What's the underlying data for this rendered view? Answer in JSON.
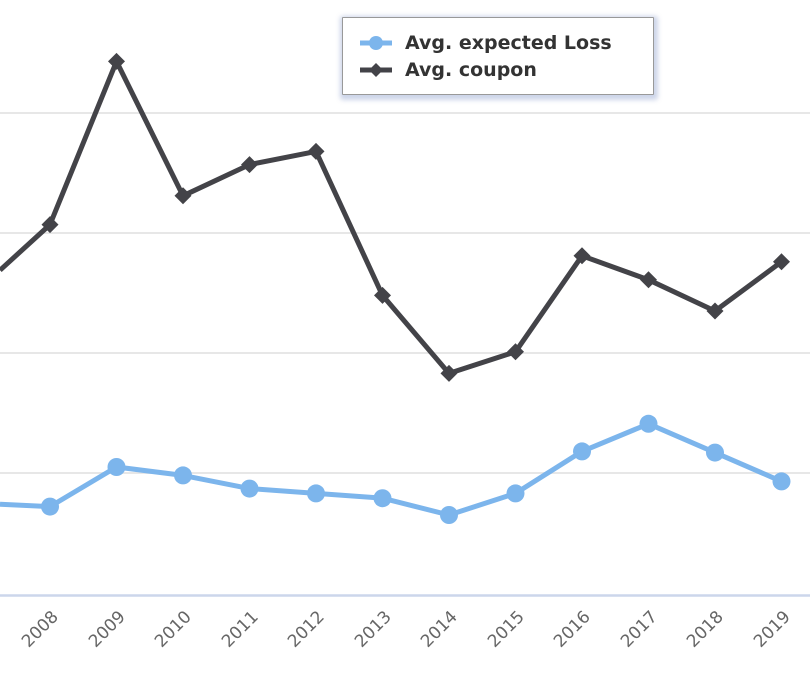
{
  "chart_data": {
    "type": "line",
    "title": "",
    "xlabel": "",
    "ylabel": "",
    "categories": [
      "2008",
      "2009",
      "2010",
      "2011",
      "2012",
      "2013",
      "2014",
      "2015",
      "2016",
      "2017",
      "2018",
      "2019"
    ],
    "series": [
      {
        "name": "Avg. expected Loss",
        "color": "#7cb5ec",
        "marker": "circle",
        "left_edge_value": 0.74,
        "values": [
          0.72,
          1.05,
          0.98,
          0.87,
          0.83,
          0.79,
          0.65,
          0.83,
          1.18,
          1.41,
          1.17,
          0.93
        ]
      },
      {
        "name": "Avg. coupon",
        "color": "#434348",
        "marker": "diamond",
        "left_edge_value": 2.69,
        "values": [
          3.07,
          4.43,
          3.31,
          3.57,
          3.68,
          2.48,
          1.83,
          2.01,
          2.81,
          2.61,
          2.35,
          2.76
        ]
      }
    ],
    "y_axis": {
      "visible_labels": false,
      "unit": "gridline-steps (no axis labels visible)",
      "ylim": [
        0,
        4.94
      ],
      "grid": true
    },
    "x_axis": {
      "labels_rotation_deg": -45,
      "label_color": "#666666"
    },
    "legend_position": "top-center"
  },
  "colors": {
    "series_loss": "#7cb5ec",
    "series_coupon": "#434348",
    "gridline": "#e7e7e7",
    "axis_line": "#ccd6eb",
    "x_label": "#666666",
    "legend_text": "#333333",
    "legend_border": "#999999"
  }
}
